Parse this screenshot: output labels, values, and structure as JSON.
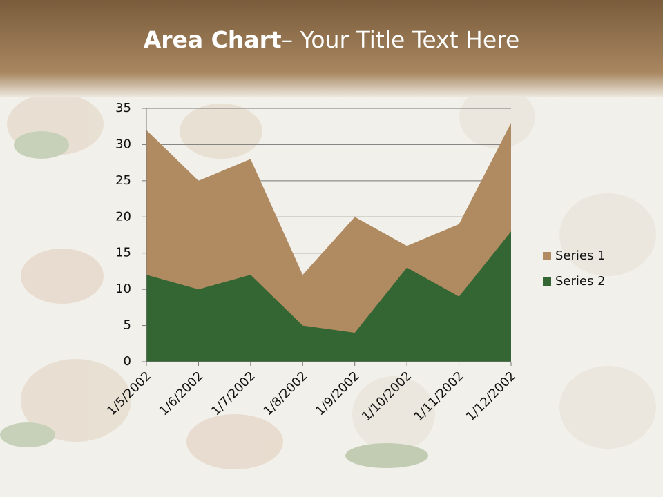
{
  "chart_data": {
    "type": "area",
    "title_parts": [
      "Area Chart",
      "– Your Title Text Here"
    ],
    "categories": [
      "1/5/2002",
      "1/6/2002",
      "1/7/2002",
      "1/8/2002",
      "1/9/2002",
      "1/10/2002",
      "1/11/2002",
      "1/12/2002"
    ],
    "series": [
      {
        "name": "Series 1",
        "color": "#b08a60",
        "values": [
          32,
          25,
          28,
          12,
          20,
          16,
          19,
          33
        ]
      },
      {
        "name": "Series 2",
        "color": "#336633",
        "values": [
          12,
          10,
          12,
          5,
          4,
          13,
          9,
          18
        ]
      }
    ],
    "ylim": [
      0,
      35
    ],
    "yticks": [
      0,
      5,
      10,
      15,
      20,
      25,
      30,
      35
    ],
    "grid": true,
    "legend": "right"
  }
}
